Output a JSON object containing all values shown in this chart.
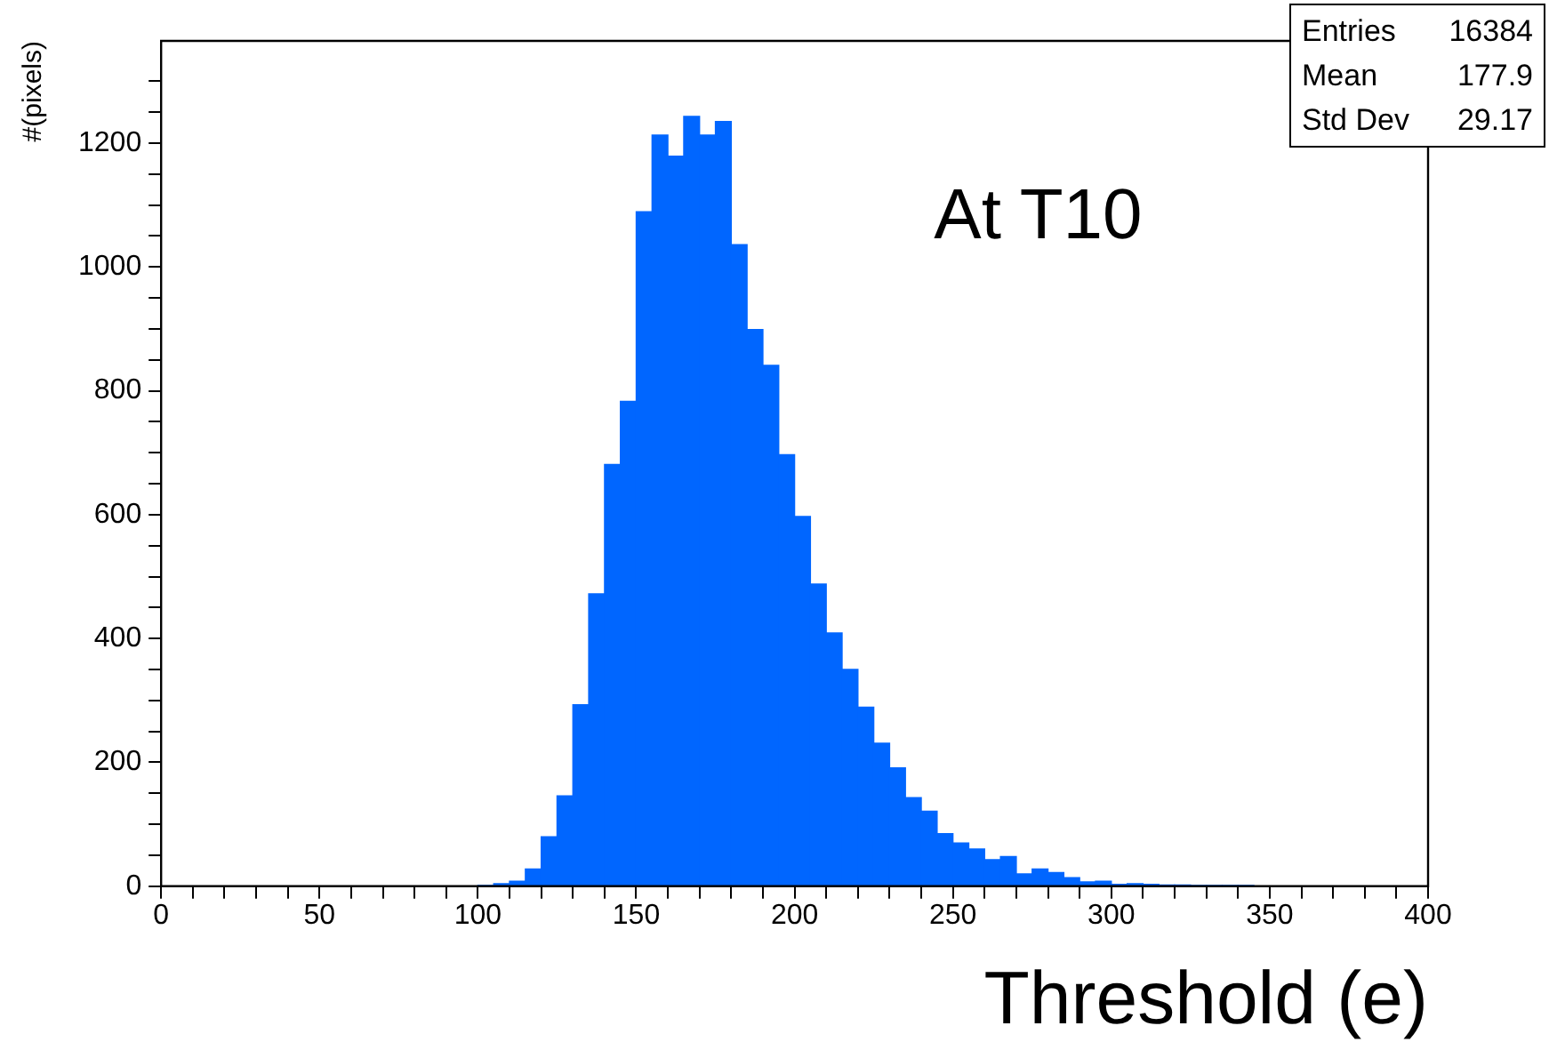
{
  "chart_data": {
    "type": "histogram",
    "xlabel": "Threshold (e)",
    "ylabel": "#(pixels)",
    "annotations": [
      "At T10",
      "Entries 16384",
      "Mean 177.9",
      "Std Dev 29.17"
    ],
    "color": "#0066ff",
    "bins": [
      100,
      105,
      110,
      115,
      120,
      125,
      130,
      135,
      140,
      145,
      150,
      155,
      160,
      165,
      170,
      175,
      180,
      185,
      190,
      195,
      200,
      205,
      210,
      215,
      220,
      225,
      230,
      235,
      240,
      245,
      250,
      255,
      260,
      265,
      270,
      275,
      280,
      285,
      290,
      295,
      300,
      305,
      310,
      315,
      320,
      325,
      330,
      335,
      340,
      345
    ],
    "values": [
      1,
      4,
      8,
      28,
      80,
      146,
      293,
      472,
      681,
      783,
      1089,
      1213,
      1179,
      1243,
      1213,
      1235,
      1036,
      899,
      841,
      697,
      597,
      488,
      409,
      350,
      289,
      231,
      191,
      143,
      121,
      85,
      70,
      60,
      43,
      48,
      20,
      28,
      22,
      14,
      7,
      8,
      3,
      4,
      3,
      2,
      2,
      1,
      1,
      1,
      1
    ],
    "xlim": [
      0,
      400
    ],
    "xticks": [
      0,
      {
        "value": 10,
        "label": null
      },
      {
        "value": 20,
        "label": null
      },
      {
        "value": 30,
        "label": null
      },
      {
        "value": 40,
        "label": null
      },
      50,
      {
        "value": 60,
        "label": null
      },
      {
        "value": 70,
        "label": null
      },
      {
        "value": 80,
        "label": null
      },
      {
        "value": 90,
        "label": null
      },
      100,
      {
        "value": 110,
        "label": null
      },
      {
        "value": 120,
        "label": null
      },
      {
        "value": 130,
        "label": null
      },
      {
        "value": 140,
        "label": null
      },
      150,
      {
        "value": 160,
        "label": null
      },
      {
        "value": 170,
        "label": null
      },
      {
        "value": 180,
        "label": null
      },
      {
        "value": 190,
        "label": null
      },
      200,
      {
        "value": 210,
        "label": null
      },
      {
        "value": 220,
        "label": null
      },
      {
        "value": 230,
        "label": null
      },
      {
        "value": 240,
        "label": null
      },
      250,
      {
        "value": 260,
        "label": null
      },
      {
        "value": 270,
        "label": null
      },
      {
        "value": 280,
        "label": null
      },
      {
        "value": 290,
        "label": null
      },
      300,
      {
        "value": 310,
        "label": null
      },
      {
        "value": 320,
        "label": null
      },
      {
        "value": 330,
        "label": null
      },
      {
        "value": 340,
        "label": null
      },
      350,
      {
        "value": 360,
        "label": null
      },
      {
        "value": 370,
        "label": null
      },
      {
        "value": 380,
        "label": null
      },
      {
        "value": 390,
        "label": null
      },
      400
    ],
    "ylim": [
      0,
      1365
    ],
    "yticks": [
      0,
      {
        "value": 50,
        "label": null
      },
      {
        "value": 100,
        "label": null
      },
      {
        "value": 150,
        "label": null
      },
      200,
      {
        "value": 250,
        "label": null
      },
      {
        "value": 300,
        "label": null
      },
      {
        "value": 350,
        "label": null
      },
      400,
      {
        "value": 450,
        "label": null
      },
      {
        "value": 500,
        "label": null
      },
      {
        "value": 550,
        "label": null
      },
      600,
      {
        "value": 650,
        "label": null
      },
      {
        "value": 700,
        "label": null
      },
      {
        "value": 750,
        "label": null
      },
      800,
      {
        "value": 850,
        "label": null
      },
      {
        "value": 900,
        "label": null
      },
      {
        "value": 950,
        "label": null
      },
      1000,
      {
        "value": 1050,
        "label": null
      },
      {
        "value": 1100,
        "label": null
      },
      {
        "value": 1150,
        "label": null
      },
      1200,
      {
        "value": 1250,
        "label": null
      },
      {
        "value": 1300,
        "label": null
      }
    ],
    "grid": false,
    "legend": false
  }
}
